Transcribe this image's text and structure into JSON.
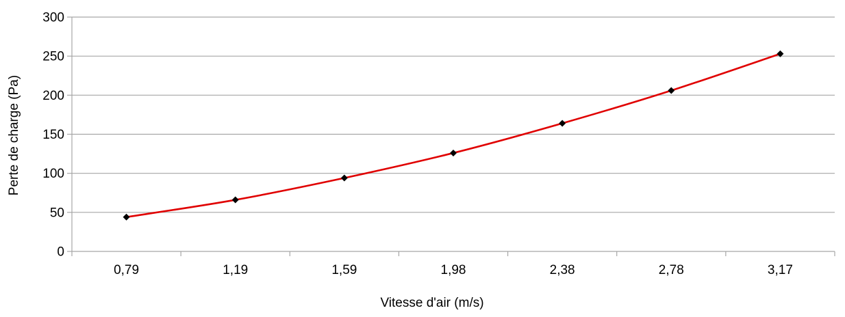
{
  "chart_data": {
    "type": "line",
    "xlabel": "Vitesse d'air (m/s)",
    "ylabel": "Perte de charge (Pa)",
    "categories": [
      "0,79",
      "1,19",
      "1,59",
      "1,98",
      "2,38",
      "2,78",
      "3,17"
    ],
    "series": [
      {
        "values": [
          44,
          66,
          94,
          126,
          164,
          206,
          253
        ],
        "line_color": "#e00000",
        "marker_color": "#000000",
        "marker": "diamond",
        "smooth": true
      }
    ],
    "ylim": [
      0,
      300
    ],
    "yticks": [
      0,
      50,
      100,
      150,
      200,
      250,
      300
    ],
    "grid": "horizontal",
    "legend": "none",
    "gridline_color": "#a6a6a6",
    "axis_color": "#a6a6a6"
  }
}
